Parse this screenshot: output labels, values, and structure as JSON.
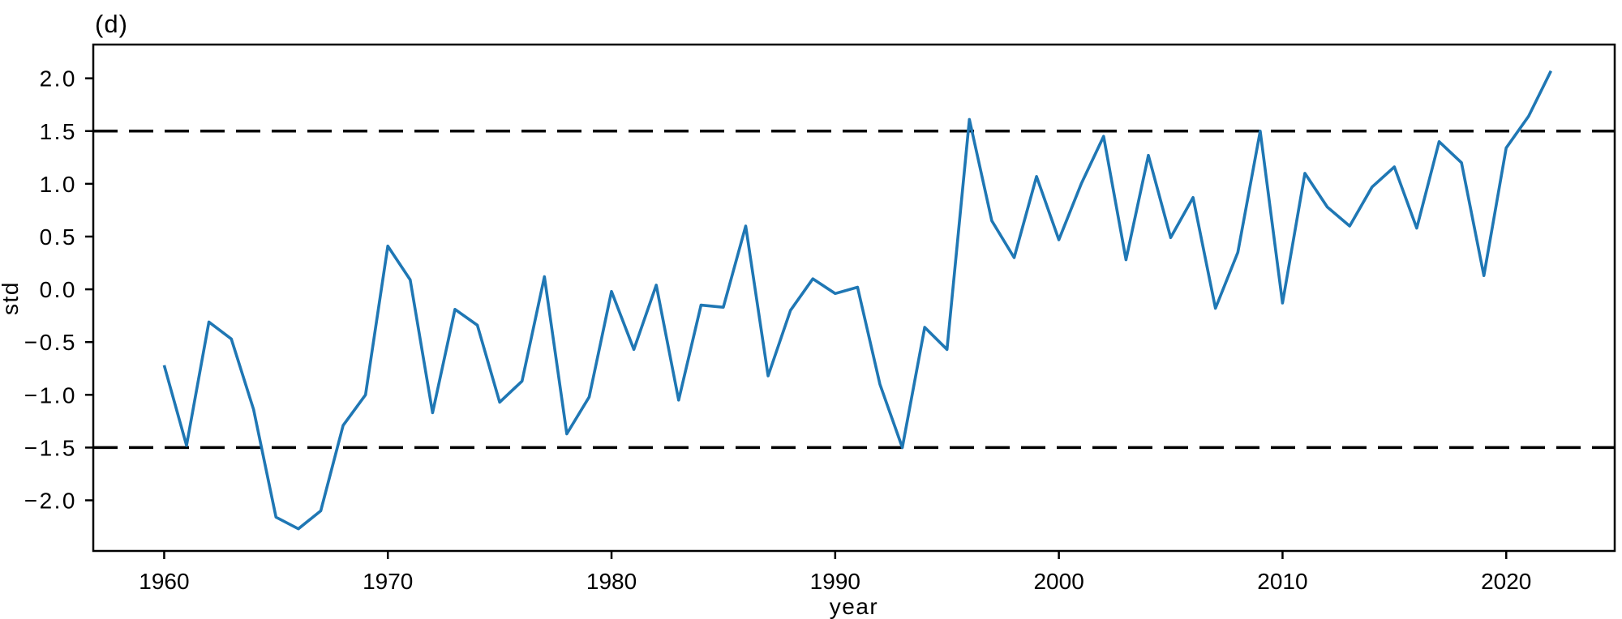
{
  "chart_data": {
    "type": "line",
    "title": "(d)",
    "xlabel": "year",
    "ylabel": "std",
    "line_color": "#1f77b4",
    "threshold_color": "#000000",
    "thresholds": [
      1.5,
      -1.5
    ],
    "grid": false,
    "legend": "none",
    "xlim": [
      1956.83,
      2024.85
    ],
    "ylim": [
      -2.48,
      2.32
    ],
    "xticks": {
      "values": [
        1960,
        1970,
        1980,
        1990,
        2000,
        2010,
        2020
      ],
      "labels": [
        "1960",
        "1970",
        "1980",
        "1990",
        "2000",
        "2010",
        "2020"
      ]
    },
    "yticks": {
      "values": [
        2.0,
        1.5,
        1.0,
        0.5,
        0.0,
        -0.5,
        -1.0,
        -1.5,
        -2.0
      ],
      "labels": [
        "2.0",
        "1.5",
        "1.0",
        "0.5",
        "0.0",
        "−0.5",
        "−1.0",
        "−1.5",
        "−2.0"
      ]
    },
    "x": [
      1960,
      1961,
      1962,
      1963,
      1964,
      1965,
      1966,
      1967,
      1968,
      1969,
      1970,
      1971,
      1972,
      1973,
      1974,
      1975,
      1976,
      1977,
      1978,
      1979,
      1980,
      1981,
      1982,
      1983,
      1984,
      1985,
      1986,
      1987,
      1988,
      1989,
      1990,
      1991,
      1992,
      1993,
      1994,
      1995,
      1996,
      1997,
      1998,
      1999,
      2000,
      2001,
      2002,
      2003,
      2004,
      2005,
      2006,
      2007,
      2008,
      2009,
      2010,
      2011,
      2012,
      2013,
      2014,
      2015,
      2016,
      2017,
      2018,
      2019,
      2020,
      2021,
      2022
    ],
    "values": [
      -0.72,
      -1.48,
      -0.31,
      -0.47,
      -1.14,
      -2.16,
      -2.27,
      -2.1,
      -1.29,
      -1.0,
      0.41,
      0.09,
      -1.17,
      -0.19,
      -0.34,
      -1.07,
      -0.87,
      0.12,
      -1.37,
      -1.02,
      -0.02,
      -0.57,
      0.04,
      -1.05,
      -0.15,
      -0.17,
      0.6,
      -0.82,
      -0.2,
      0.1,
      -0.04,
      0.02,
      -0.9,
      -1.5,
      -0.36,
      -0.57,
      1.61,
      0.65,
      0.3,
      1.07,
      0.47,
      1.0,
      1.45,
      0.28,
      1.27,
      0.49,
      0.87,
      -0.18,
      0.35,
      1.5,
      -0.13,
      1.1,
      0.78,
      0.6,
      0.97,
      1.16,
      0.58,
      1.4,
      1.2,
      0.13,
      1.34,
      1.64,
      2.07
    ]
  }
}
